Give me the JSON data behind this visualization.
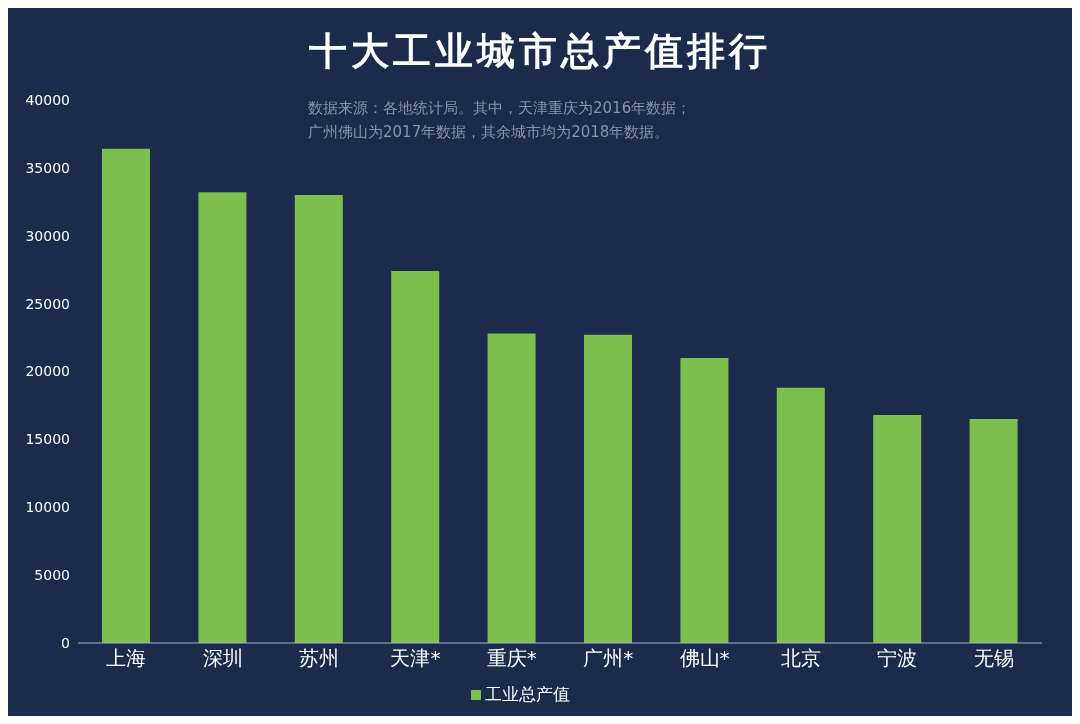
{
  "chart_data": {
    "type": "bar",
    "title": "十大工业城市总产值排行",
    "categories": [
      "上海",
      "深圳",
      "苏州",
      "天津*",
      "重庆*",
      "广州*",
      "佛山*",
      "北京",
      "宁波",
      "无锡"
    ],
    "series": [
      {
        "name": "工业总产值",
        "color": "#7cbf4f",
        "values": [
          36400,
          33200,
          33000,
          27400,
          22800,
          22700,
          21000,
          18800,
          16800,
          16500
        ]
      }
    ],
    "ylim": [
      0,
      40000
    ],
    "yticks": [
      0,
      5000,
      10000,
      15000,
      20000,
      25000,
      30000,
      35000,
      40000
    ],
    "annotations": [
      "数据来源：各地统计局。其中，天津重庆为2016年数据；",
      "广州佛山为2017年数据，其余城市均为2018年数据。"
    ],
    "grid": false,
    "legend": "bottom"
  }
}
